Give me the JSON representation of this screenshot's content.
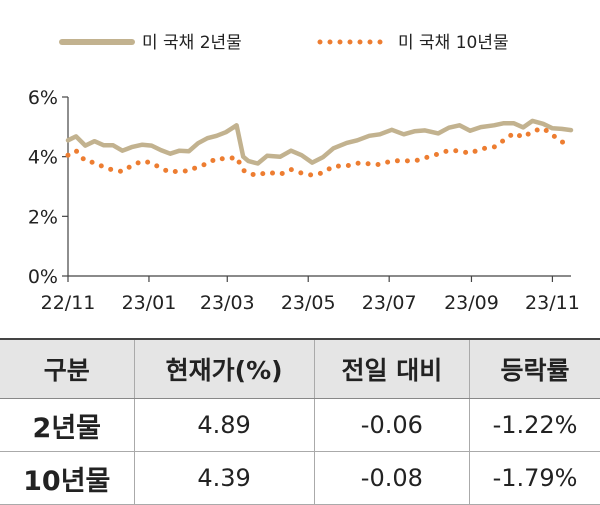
{
  "chart_data": {
    "type": "line",
    "title": "",
    "xlabel": "",
    "ylabel": "",
    "ylim": [
      0,
      6
    ],
    "yticks": [
      "0%",
      "2%",
      "4%",
      "6%"
    ],
    "x_ticks": [
      "22/11",
      "23/01",
      "23/03",
      "23/05",
      "23/07",
      "23/09",
      "23/11"
    ],
    "legend_position": "top",
    "grid": false,
    "series": [
      {
        "name": "미 국채 2년물",
        "color": "#c2b28f",
        "style": "solid",
        "points": [
          {
            "x": "2022-11-01",
            "y": 4.55
          },
          {
            "x": "2022-11-07",
            "y": 4.68
          },
          {
            "x": "2022-11-14",
            "y": 4.37
          },
          {
            "x": "2022-11-21",
            "y": 4.52
          },
          {
            "x": "2022-11-28",
            "y": 4.38
          },
          {
            "x": "2022-12-05",
            "y": 4.38
          },
          {
            "x": "2022-12-12",
            "y": 4.2
          },
          {
            "x": "2022-12-19",
            "y": 4.32
          },
          {
            "x": "2022-12-27",
            "y": 4.4
          },
          {
            "x": "2023-01-03",
            "y": 4.37
          },
          {
            "x": "2023-01-10",
            "y": 4.22
          },
          {
            "x": "2023-01-17",
            "y": 4.1
          },
          {
            "x": "2023-01-24",
            "y": 4.2
          },
          {
            "x": "2023-01-31",
            "y": 4.18
          },
          {
            "x": "2023-02-07",
            "y": 4.45
          },
          {
            "x": "2023-02-14",
            "y": 4.62
          },
          {
            "x": "2023-02-21",
            "y": 4.7
          },
          {
            "x": "2023-02-28",
            "y": 4.82
          },
          {
            "x": "2023-03-08",
            "y": 5.05
          },
          {
            "x": "2023-03-13",
            "y": 4.0
          },
          {
            "x": "2023-03-17",
            "y": 3.85
          },
          {
            "x": "2023-03-24",
            "y": 3.77
          },
          {
            "x": "2023-03-31",
            "y": 4.03
          },
          {
            "x": "2023-04-10",
            "y": 4.0
          },
          {
            "x": "2023-04-18",
            "y": 4.2
          },
          {
            "x": "2023-04-26",
            "y": 4.05
          },
          {
            "x": "2023-05-04",
            "y": 3.8
          },
          {
            "x": "2023-05-12",
            "y": 3.98
          },
          {
            "x": "2023-05-20",
            "y": 4.28
          },
          {
            "x": "2023-05-30",
            "y": 4.46
          },
          {
            "x": "2023-06-07",
            "y": 4.55
          },
          {
            "x": "2023-06-16",
            "y": 4.7
          },
          {
            "x": "2023-06-24",
            "y": 4.75
          },
          {
            "x": "2023-07-03",
            "y": 4.9
          },
          {
            "x": "2023-07-12",
            "y": 4.75
          },
          {
            "x": "2023-07-20",
            "y": 4.85
          },
          {
            "x": "2023-07-28",
            "y": 4.88
          },
          {
            "x": "2023-08-07",
            "y": 4.78
          },
          {
            "x": "2023-08-15",
            "y": 4.97
          },
          {
            "x": "2023-08-23",
            "y": 5.05
          },
          {
            "x": "2023-08-31",
            "y": 4.87
          },
          {
            "x": "2023-09-08",
            "y": 4.99
          },
          {
            "x": "2023-09-18",
            "y": 5.05
          },
          {
            "x": "2023-09-25",
            "y": 5.12
          },
          {
            "x": "2023-10-03",
            "y": 5.12
          },
          {
            "x": "2023-10-10",
            "y": 4.98
          },
          {
            "x": "2023-10-17",
            "y": 5.2
          },
          {
            "x": "2023-10-25",
            "y": 5.1
          },
          {
            "x": "2023-11-01",
            "y": 4.95
          },
          {
            "x": "2023-11-08",
            "y": 4.93
          },
          {
            "x": "2023-11-15",
            "y": 4.89
          }
        ]
      },
      {
        "name": "미 국채 10년물",
        "color": "#ed7d31",
        "style": "dotted",
        "points": [
          {
            "x": "2022-11-01",
            "y": 4.05
          },
          {
            "x": "2022-11-07",
            "y": 4.2
          },
          {
            "x": "2022-11-14",
            "y": 3.85
          },
          {
            "x": "2022-11-21",
            "y": 3.8
          },
          {
            "x": "2022-11-28",
            "y": 3.65
          },
          {
            "x": "2022-12-05",
            "y": 3.55
          },
          {
            "x": "2022-12-12",
            "y": 3.5
          },
          {
            "x": "2022-12-19",
            "y": 3.7
          },
          {
            "x": "2022-12-27",
            "y": 3.85
          },
          {
            "x": "2023-01-03",
            "y": 3.79
          },
          {
            "x": "2023-01-10",
            "y": 3.61
          },
          {
            "x": "2023-01-17",
            "y": 3.48
          },
          {
            "x": "2023-01-24",
            "y": 3.52
          },
          {
            "x": "2023-01-31",
            "y": 3.52
          },
          {
            "x": "2023-02-07",
            "y": 3.67
          },
          {
            "x": "2023-02-14",
            "y": 3.76
          },
          {
            "x": "2023-02-21",
            "y": 3.95
          },
          {
            "x": "2023-02-28",
            "y": 3.92
          },
          {
            "x": "2023-03-08",
            "y": 3.98
          },
          {
            "x": "2023-03-13",
            "y": 3.55
          },
          {
            "x": "2023-03-17",
            "y": 3.43
          },
          {
            "x": "2023-03-24",
            "y": 3.38
          },
          {
            "x": "2023-03-31",
            "y": 3.48
          },
          {
            "x": "2023-04-10",
            "y": 3.41
          },
          {
            "x": "2023-04-18",
            "y": 3.57
          },
          {
            "x": "2023-04-26",
            "y": 3.45
          },
          {
            "x": "2023-05-04",
            "y": 3.38
          },
          {
            "x": "2023-05-12",
            "y": 3.46
          },
          {
            "x": "2023-05-20",
            "y": 3.68
          },
          {
            "x": "2023-05-30",
            "y": 3.69
          },
          {
            "x": "2023-06-07",
            "y": 3.78
          },
          {
            "x": "2023-06-16",
            "y": 3.76
          },
          {
            "x": "2023-06-24",
            "y": 3.73
          },
          {
            "x": "2023-07-03",
            "y": 3.86
          },
          {
            "x": "2023-07-12",
            "y": 3.86
          },
          {
            "x": "2023-07-20",
            "y": 3.85
          },
          {
            "x": "2023-07-28",
            "y": 3.96
          },
          {
            "x": "2023-08-07",
            "y": 4.09
          },
          {
            "x": "2023-08-15",
            "y": 4.21
          },
          {
            "x": "2023-08-23",
            "y": 4.19
          },
          {
            "x": "2023-08-31",
            "y": 4.11
          },
          {
            "x": "2023-09-08",
            "y": 4.26
          },
          {
            "x": "2023-09-18",
            "y": 4.32
          },
          {
            "x": "2023-09-25",
            "y": 4.54
          },
          {
            "x": "2023-10-03",
            "y": 4.79
          },
          {
            "x": "2023-10-10",
            "y": 4.65
          },
          {
            "x": "2023-10-17",
            "y": 4.85
          },
          {
            "x": "2023-10-25",
            "y": 4.95
          },
          {
            "x": "2023-11-01",
            "y": 4.73
          },
          {
            "x": "2023-11-08",
            "y": 4.5
          },
          {
            "x": "2023-11-15",
            "y": 4.39
          }
        ]
      }
    ]
  },
  "table": {
    "headers": [
      "구분",
      "현재가(%)",
      "전일 대비",
      "등락률"
    ],
    "rows": [
      {
        "label": "2년물",
        "price": "4.89",
        "change": "-0.06",
        "rate": "-1.22%"
      },
      {
        "label": "10년물",
        "price": "4.39",
        "change": "-0.08",
        "rate": "-1.79%"
      }
    ]
  }
}
